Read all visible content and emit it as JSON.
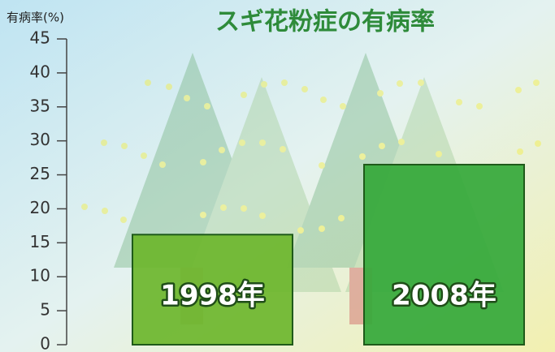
{
  "chart_data": {
    "type": "bar",
    "title": "スギ花粉症の有病率",
    "y_label": "有病率(%)",
    "categories": [
      "1998年",
      "2008年"
    ],
    "values": [
      16.2,
      26.5
    ],
    "colors": [
      "#6cb62c",
      "#34a83a"
    ],
    "ylim": [
      0,
      45
    ],
    "yticks": [
      0,
      5,
      10,
      15,
      20,
      25,
      30,
      35,
      40,
      45
    ]
  }
}
